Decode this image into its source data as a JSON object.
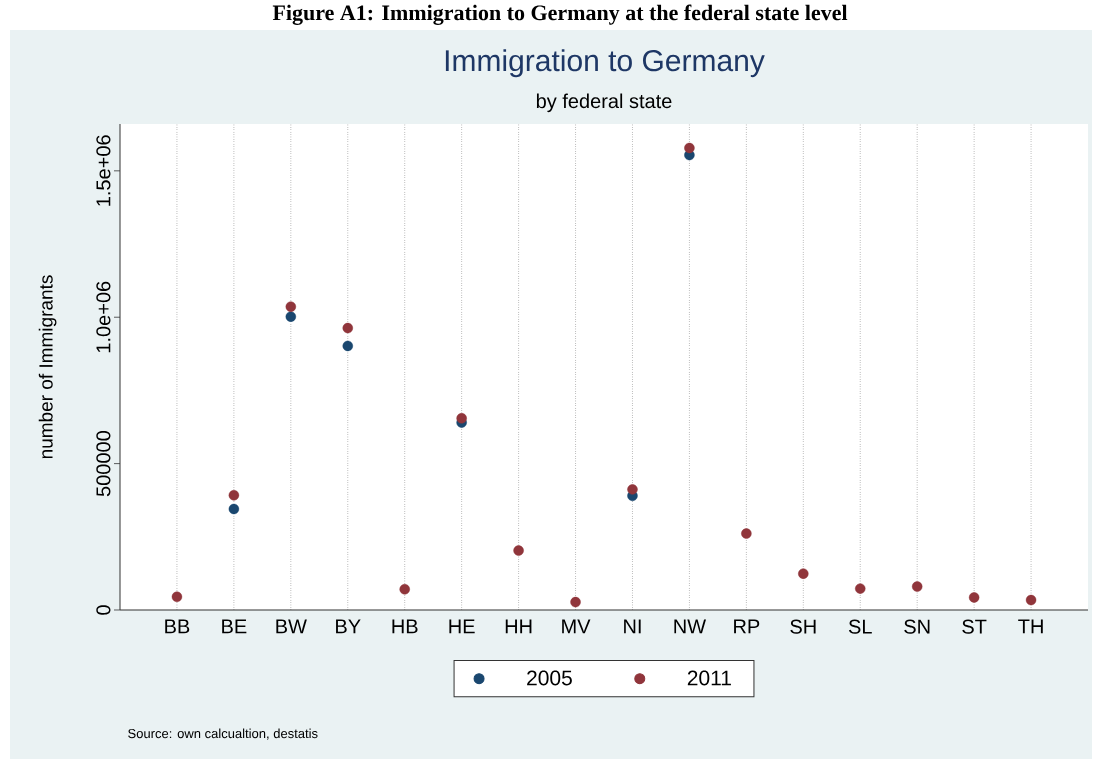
{
  "chart_data": {
    "type": "scatter",
    "title": "Immigration to Germany",
    "subtitle": "by federal state",
    "ylabel": "number of Immigrants",
    "annotations": [
      "Figure A1: Immigration to Germany at the federal state level",
      "Source: own calcualtion, destatis"
    ],
    "categories": [
      "BB",
      "BE",
      "BW",
      "BY",
      "HB",
      "HE",
      "HH",
      "MV",
      "NI",
      "NW",
      "RP",
      "SH",
      "SL",
      "SN",
      "ST",
      "TH"
    ],
    "series": [
      {
        "name": "2005",
        "color": "#1a476f",
        "values": [
          null,
          345000,
          1002000,
          902000,
          null,
          640000,
          null,
          null,
          390000,
          1554000,
          null,
          null,
          null,
          null,
          null,
          null
        ]
      },
      {
        "name": "2011",
        "color": "#90353b",
        "values": [
          45000,
          392000,
          1036000,
          963000,
          71000,
          655000,
          203000,
          27000,
          412000,
          1578000,
          261000,
          124000,
          73000,
          80000,
          43000,
          34000
        ]
      }
    ],
    "ylim": [
      0,
      1660000
    ],
    "yticks": [
      0,
      500000,
      {
        "value": 1000000,
        "label": "1.0e+06"
      },
      {
        "value": 1500000,
        "label": "1.5e+06"
      }
    ],
    "grid": "x",
    "legend": "bottom",
    "marker": "circle"
  }
}
